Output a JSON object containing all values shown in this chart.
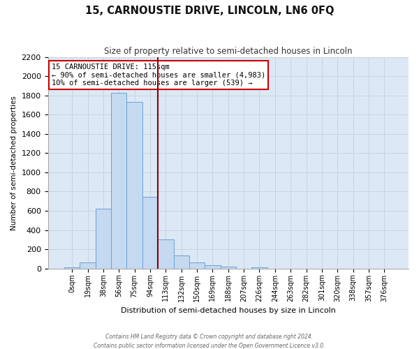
{
  "title": "15, CARNOUSTIE DRIVE, LINCOLN, LN6 0FQ",
  "subtitle": "Size of property relative to semi-detached houses in Lincoln",
  "xlabel": "Distribution of semi-detached houses by size in Lincoln",
  "ylabel": "Number of semi-detached properties",
  "bar_labels": [
    "0sqm",
    "19sqm",
    "38sqm",
    "56sqm",
    "75sqm",
    "94sqm",
    "113sqm",
    "132sqm",
    "150sqm",
    "169sqm",
    "188sqm",
    "207sqm",
    "226sqm",
    "244sqm",
    "263sqm",
    "282sqm",
    "301sqm",
    "320sqm",
    "338sqm",
    "357sqm",
    "376sqm"
  ],
  "bar_heights": [
    15,
    60,
    625,
    1830,
    1730,
    745,
    300,
    135,
    65,
    35,
    20,
    0,
    15,
    0,
    0,
    0,
    0,
    0,
    0,
    0,
    0
  ],
  "bar_color": "#c5d9f0",
  "bar_edge_color": "#6ba3d6",
  "vline_color": "#8b0000",
  "ylim": [
    0,
    2200
  ],
  "yticks": [
    0,
    200,
    400,
    600,
    800,
    1000,
    1200,
    1400,
    1600,
    1800,
    2000,
    2200
  ],
  "annotation_title": "15 CARNOUSTIE DRIVE: 115sqm",
  "annotation_line1": "← 90% of semi-detached houses are smaller (4,983)",
  "annotation_line2": "10% of semi-detached houses are larger (539) →",
  "annotation_box_color": "#ffffff",
  "annotation_box_edge": "#cc0000",
  "grid_color": "#c8d4e0",
  "bg_color": "#dce8f5",
  "fig_bg_color": "#ffffff",
  "footer1": "Contains HM Land Registry data © Crown copyright and database right 2024.",
  "footer2": "Contains public sector information licensed under the Open Government Licence v3.0."
}
